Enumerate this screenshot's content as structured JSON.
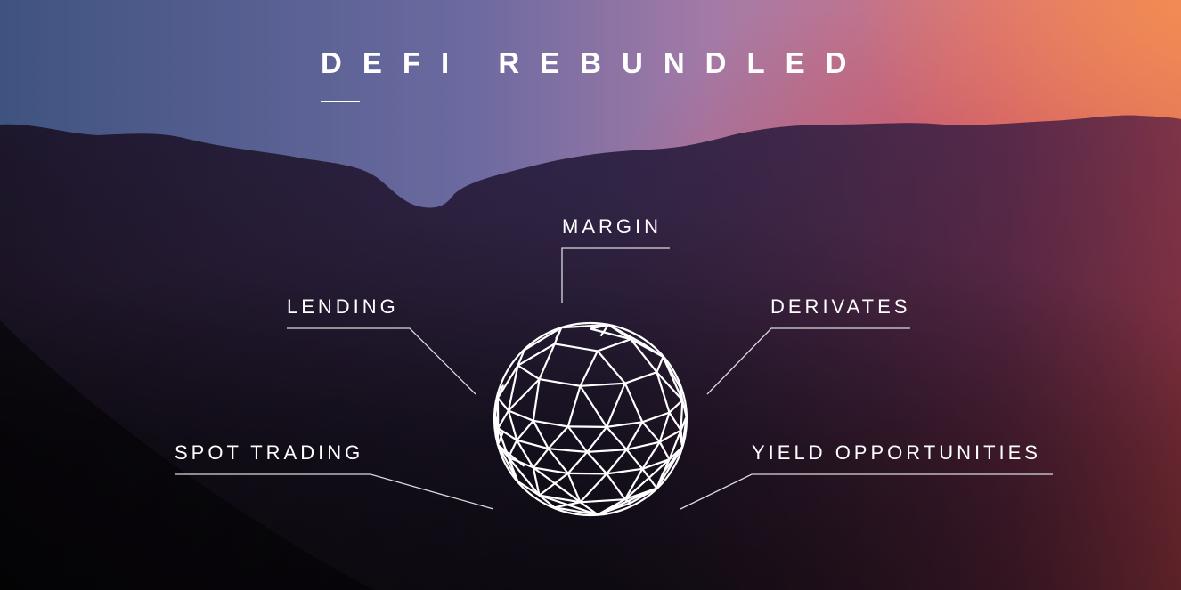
{
  "header": {
    "title": "DEFI REBUNDLED"
  },
  "labels": {
    "margin": "MARGIN",
    "lending": "LENDING",
    "derivates": "DERIVATES",
    "spot_trading": "SPOT TRADING",
    "yield_opportunities": "YIELD OPPORTUNITIES"
  },
  "colors": {
    "text": "#ffffff",
    "sky_left": "#3f5380",
    "sky_right": "#e78867",
    "ground": "#0f0c12"
  }
}
